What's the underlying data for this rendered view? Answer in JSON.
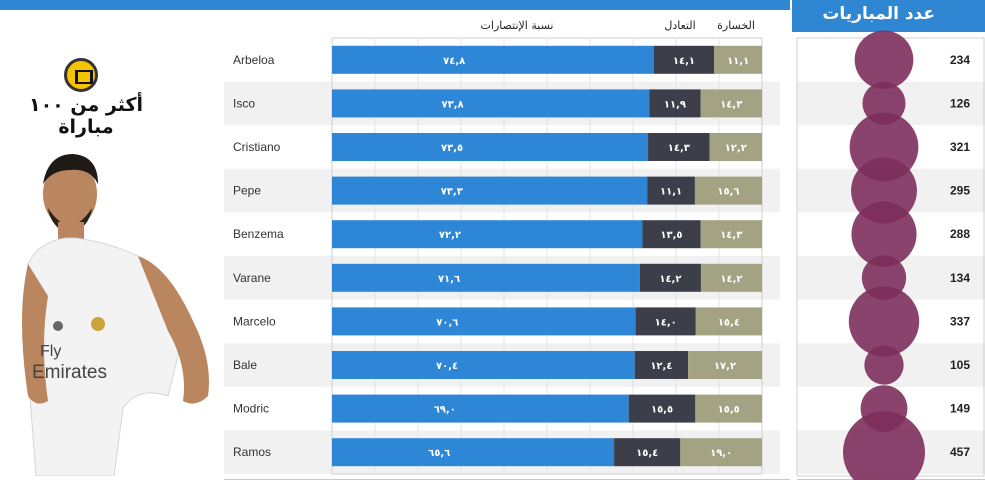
{
  "header": {
    "matches_title": "عدد المباريات",
    "headline": "أكثر من ١٠٠ مباراة"
  },
  "colors": {
    "wins": "#2e86d6",
    "draws": "#3c3f4a",
    "losses": "#a3a283",
    "bubble": "#7d2f5c",
    "accent": "#2f86d2"
  },
  "icons": {
    "crest": "club-crest-icon",
    "player": "player-photo"
  },
  "chart_data": {
    "type": "bar",
    "stacked": true,
    "orientation": "horizontal",
    "column_headers": {
      "wins": "نسبة الإنتصارات",
      "draws": "التعادل",
      "losses": "الخسارة"
    },
    "categories": [
      "Arbeloa",
      "Isco",
      "Cristiano",
      "Pepe",
      "Benzema",
      "Varane",
      "Marcelo",
      "Bale",
      "Modric",
      "Ramos"
    ],
    "series": [
      {
        "name": "نسبة الإنتصارات",
        "values": [
          74.8,
          73.8,
          73.5,
          73.3,
          72.2,
          71.6,
          70.6,
          70.4,
          69.0,
          65.6
        ],
        "labels": [
          "٧٤,٨",
          "٧٣,٨",
          "٧٣,٥",
          "٧٣,٣",
          "٧٢,٢",
          "٧١,٦",
          "٧٠,٦",
          "٧٠,٤",
          "٦٩,٠",
          "٦٥,٦"
        ]
      },
      {
        "name": "التعادل",
        "values": [
          14.1,
          11.9,
          14.3,
          11.1,
          13.5,
          14.2,
          14.0,
          12.4,
          15.5,
          15.4
        ],
        "labels": [
          "١٤,١",
          "١١,٩",
          "١٤,٣",
          "١١,١",
          "١٣,٥",
          "١٤,٢",
          "١٤,٠",
          "١٢,٤",
          "١٥,٥",
          "١٥,٤"
        ]
      },
      {
        "name": "الخسارة",
        "values": [
          11.1,
          14.3,
          12.2,
          15.6,
          14.3,
          14.2,
          15.4,
          17.2,
          15.5,
          19.0
        ],
        "labels": [
          "١١,١",
          "١٤,٣",
          "١٢,٢",
          "١٥,٦",
          "١٤,٣",
          "١٤,٢",
          "١٥,٤",
          "١٧,٢",
          "١٥,٥",
          "١٩,٠"
        ]
      }
    ],
    "matches": {
      "title": "عدد المباريات",
      "values": [
        234,
        126,
        321,
        295,
        288,
        134,
        337,
        105,
        149,
        457
      ]
    },
    "xlim": [
      0,
      100
    ],
    "grid": true
  }
}
